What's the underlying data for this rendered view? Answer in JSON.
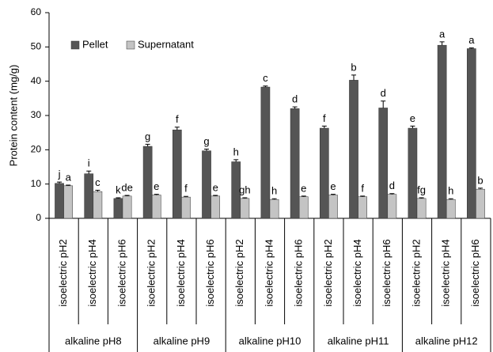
{
  "chart_data": {
    "type": "bar",
    "y_label": "Protein content (mg/g)",
    "groups": [
      {
        "name": "alkaline pH8",
        "categories": [
          "isoelectric pH2",
          "isoelectric pH4",
          "isoelectric pH6"
        ]
      },
      {
        "name": "alkaline pH9",
        "categories": [
          "isoelectric pH2",
          "isoelectric pH4",
          "isoelectric pH6"
        ]
      },
      {
        "name": "alkaline pH10",
        "categories": [
          "isoelectric pH2",
          "isoelectric pH4",
          "isoelectric pH6"
        ]
      },
      {
        "name": "alkaline pH11",
        "categories": [
          "isoelectric pH2",
          "isoelectric pH4",
          "isoelectric pH6"
        ]
      },
      {
        "name": "alkaline pH12",
        "categories": [
          "isoelectric pH2",
          "isoelectric pH4",
          "isoelectric pH6"
        ]
      }
    ],
    "series": [
      {
        "name": "Pellet",
        "color": "#555555",
        "values": [
          10.2,
          13,
          5.8,
          21,
          25.8,
          19.7,
          16.5,
          38.3,
          32,
          26.3,
          40.3,
          32.2,
          26.3,
          50.5,
          49.5
        ],
        "errors": [
          0.4,
          0.8,
          0.2,
          0.6,
          0.8,
          0.5,
          0.6,
          0.3,
          0.5,
          0.6,
          1.5,
          2,
          0.6,
          1,
          0.2
        ],
        "letters": [
          "j",
          "i",
          "k",
          "g",
          "f",
          "g",
          "h",
          "c",
          "d",
          "f",
          "b",
          "d",
          "e",
          "a",
          "a"
        ]
      },
      {
        "name": "Supernatant",
        "color": "#c4c4c4",
        "values": [
          9.5,
          7.8,
          6.5,
          6.8,
          6.2,
          6.5,
          5.8,
          5.5,
          6.3,
          6.8,
          6.3,
          7,
          5.8,
          5.5,
          8.5
        ],
        "errors": [
          0.2,
          0.4,
          0.2,
          0.2,
          0.2,
          0.2,
          0.2,
          0.2,
          0.2,
          0.2,
          0.2,
          0.2,
          0.2,
          0.2,
          0.3
        ],
        "letters": [
          "a",
          "c",
          "de",
          "e",
          "f",
          "e",
          "gh",
          "h",
          "e",
          "e",
          "f",
          "d",
          "fg",
          "h",
          "b"
        ]
      }
    ],
    "ylim": [
      0,
      60
    ],
    "yticks": [
      0,
      10,
      20,
      30,
      40,
      50,
      60
    ],
    "legend": "top-left"
  }
}
